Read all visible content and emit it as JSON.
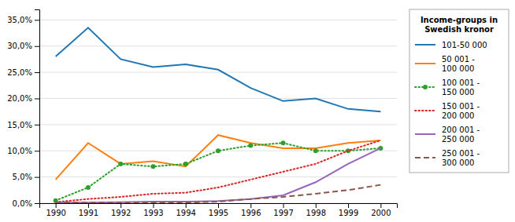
{
  "chart_data": {
    "type": "line",
    "legend_title": "Income-groups in\nSwedish kronor",
    "x": [
      1990,
      1991,
      1992,
      1993,
      1994,
      1995,
      1996,
      1997,
      1998,
      1999,
      2000
    ],
    "series": [
      {
        "name": "101-50 000",
        "line_style": "solid",
        "values": [
          28.0,
          33.5,
          27.5,
          26.0,
          26.5,
          25.5,
          22.0,
          19.5,
          20.0,
          18.0,
          17.5
        ]
      },
      {
        "name": "50 001 -\n100 000",
        "line_style": "solid",
        "values": [
          4.5,
          11.5,
          7.5,
          8.0,
          7.0,
          13.0,
          11.5,
          10.5,
          10.5,
          11.5,
          12.0
        ]
      },
      {
        "name": "100 001 -\n150 000",
        "line_style": "dotted",
        "marker": "circle",
        "values": [
          0.5,
          3.0,
          7.5,
          7.0,
          7.5,
          10.0,
          11.0,
          11.5,
          10.0,
          10.0,
          10.5
        ]
      },
      {
        "name": "150 001 -\n200 000",
        "line_style": "dotted",
        "values": [
          0.2,
          0.8,
          1.2,
          1.8,
          2.0,
          3.0,
          4.5,
          6.0,
          7.5,
          10.0,
          12.0
        ]
      },
      {
        "name": "200 001 -\n250 000",
        "line_style": "solid",
        "values": [
          0.1,
          0.1,
          0.2,
          0.3,
          0.3,
          0.4,
          0.8,
          1.5,
          4.0,
          7.5,
          10.5
        ]
      },
      {
        "name": "250 001 -\n300 000",
        "line_style": "dashed",
        "values": [
          0.1,
          0.1,
          0.1,
          0.1,
          0.1,
          0.3,
          0.8,
          1.2,
          1.8,
          2.5,
          3.5
        ]
      }
    ],
    "xlim": [
      1989.5,
      2000.5
    ],
    "xticks": [
      1990,
      1991,
      1992,
      1993,
      1994,
      1995,
      1996,
      1997,
      1998,
      1999,
      2000
    ],
    "ylim": [
      0,
      37
    ],
    "yticks": [
      {
        "value": 0.0,
        "label": "0,0%"
      },
      {
        "value": 5.0,
        "label": "5,0%"
      },
      {
        "value": 10.0,
        "label": "10,0%"
      },
      {
        "value": 15.0,
        "label": "15,0%"
      },
      {
        "value": 20.0,
        "label": "20,0%"
      },
      {
        "value": 25.0,
        "label": "25,0%"
      },
      {
        "value": 30.0,
        "label": "30,0%"
      },
      {
        "value": 35.0,
        "label": "35,0%"
      }
    ],
    "grid": true,
    "legend": "right"
  }
}
